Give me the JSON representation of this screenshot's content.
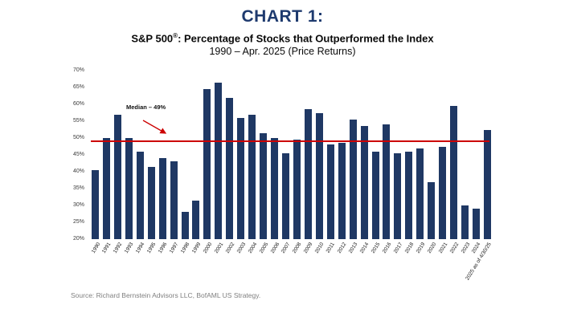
{
  "header": {
    "chart_label": "CHART 1:",
    "subtitle_prefix": "S&P 500",
    "subtitle_sup": "®",
    "subtitle_rest": ": Percentage of Stocks that Outperformed the Index",
    "subtitle_line2": "1990 – Apr. 2025 (Price Returns)"
  },
  "chart_data": {
    "type": "bar",
    "title": "S&P 500®: Percentage of Stocks that Outperformed the Index",
    "subtitle": "1990 – Apr. 2025 (Price Returns)",
    "categories": [
      "1990",
      "1991",
      "1992",
      "1993",
      "1994",
      "1995",
      "1996",
      "1997",
      "1998",
      "1999",
      "2000",
      "2001",
      "2002",
      "2003",
      "2004",
      "2005",
      "2006",
      "2007",
      "2008",
      "2009",
      "2010",
      "2011",
      "2012",
      "2013",
      "2014",
      "2015",
      "2016",
      "2017",
      "2018",
      "2019",
      "2020",
      "2021",
      "2022",
      "2023",
      "2024",
      "2025 as of 4/30/25"
    ],
    "values": [
      40.5,
      50,
      57,
      50,
      46,
      41.5,
      44,
      43,
      28,
      31.5,
      64.5,
      66.5,
      62,
      56,
      57,
      51.5,
      50,
      45.5,
      49.5,
      58.5,
      57.5,
      48,
      48.5,
      55.5,
      53.5,
      46,
      54,
      45.5,
      46,
      47,
      37,
      47.5,
      59.5,
      30,
      29,
      52.5
    ],
    "ylim": [
      20,
      70
    ],
    "yticks": [
      20,
      25,
      30,
      35,
      40,
      45,
      50,
      55,
      60,
      65,
      70
    ],
    "ytick_suffix": "%",
    "xlabel": "",
    "ylabel": "",
    "grid": false,
    "legend": "none",
    "bar_color": "#1f3864",
    "median_line": {
      "value": 49,
      "label": "Median – 49%",
      "color": "#cc0000"
    }
  },
  "source": "Source: Richard Bernstein Advisors LLC, BofAML US Strategy.",
  "colors": {
    "title": "#1e3a6e",
    "bar": "#1f3864",
    "median_line": "#cc0000",
    "source_text": "#7f7f7f"
  }
}
